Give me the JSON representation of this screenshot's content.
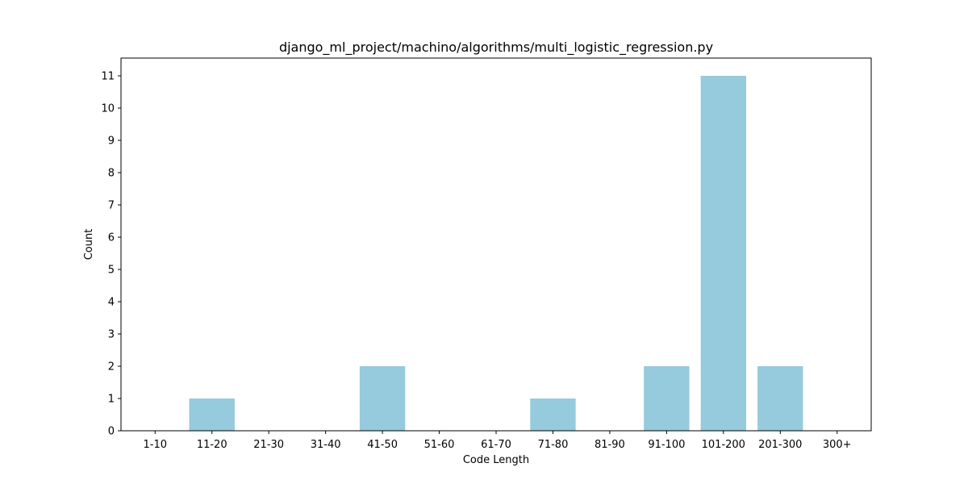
{
  "chart_data": {
    "type": "bar",
    "title": "django_ml_project/machino/algorithms/multi_logistic_regression.py",
    "xlabel": "Code Length",
    "ylabel": "Count",
    "categories": [
      "1-10",
      "11-20",
      "21-30",
      "31-40",
      "41-50",
      "51-60",
      "61-70",
      "71-80",
      "81-90",
      "91-100",
      "101-200",
      "201-300",
      "300+"
    ],
    "values": [
      0,
      1,
      0,
      0,
      2,
      0,
      0,
      1,
      0,
      2,
      11,
      2,
      0
    ],
    "ylim": [
      0,
      11.55
    ],
    "yticks": [
      0,
      1,
      2,
      3,
      4,
      5,
      6,
      7,
      8,
      9,
      10,
      11
    ],
    "bar_color": "#96cadd",
    "grid": false,
    "legend": "none"
  }
}
